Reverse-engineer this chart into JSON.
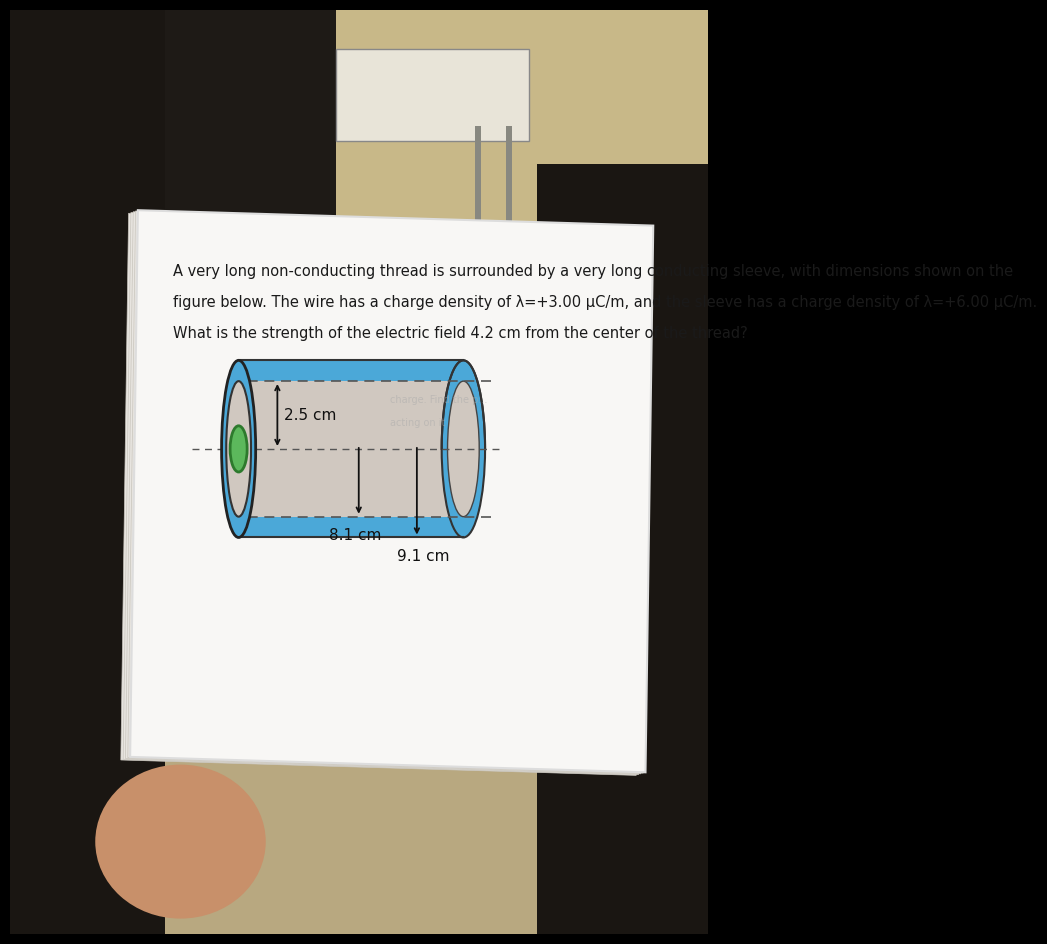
{
  "bg_top_color": "#3a3530",
  "bg_mid_color": "#c8b898",
  "bg_bot_color": "#d4c9b0",
  "paper_color": "#f8f7f5",
  "paper_edge": "#e0ddd8",
  "text_color": "#1a1a1a",
  "sleeve_color": "#4ba8d8",
  "sleeve_dark": "#2a7aaa",
  "sleeve_inner_color": "#d0c8c0",
  "wire_color": "#5cb85c",
  "wire_dark": "#2d7a2d",
  "dashed_color": "#555555",
  "arrow_color": "#111111",
  "text_line1": "A very long non-conducting thread is surrounded by a very long conducting sleeve, with dimensions shown on the",
  "text_line2": "figure below. The wire has a charge density of λ=+3.00 μC/m, and the sleeve has a charge density of λ=+6.00 μC/m.",
  "text_line3": "What is the strength of the electric field 4.2 cm from the center of the thread?",
  "dim1": "2.5 cm",
  "dim2": "8.1 cm",
  "dim3": "9.1 cm",
  "text_fontsize": 10.5,
  "dim_fontsize": 11
}
